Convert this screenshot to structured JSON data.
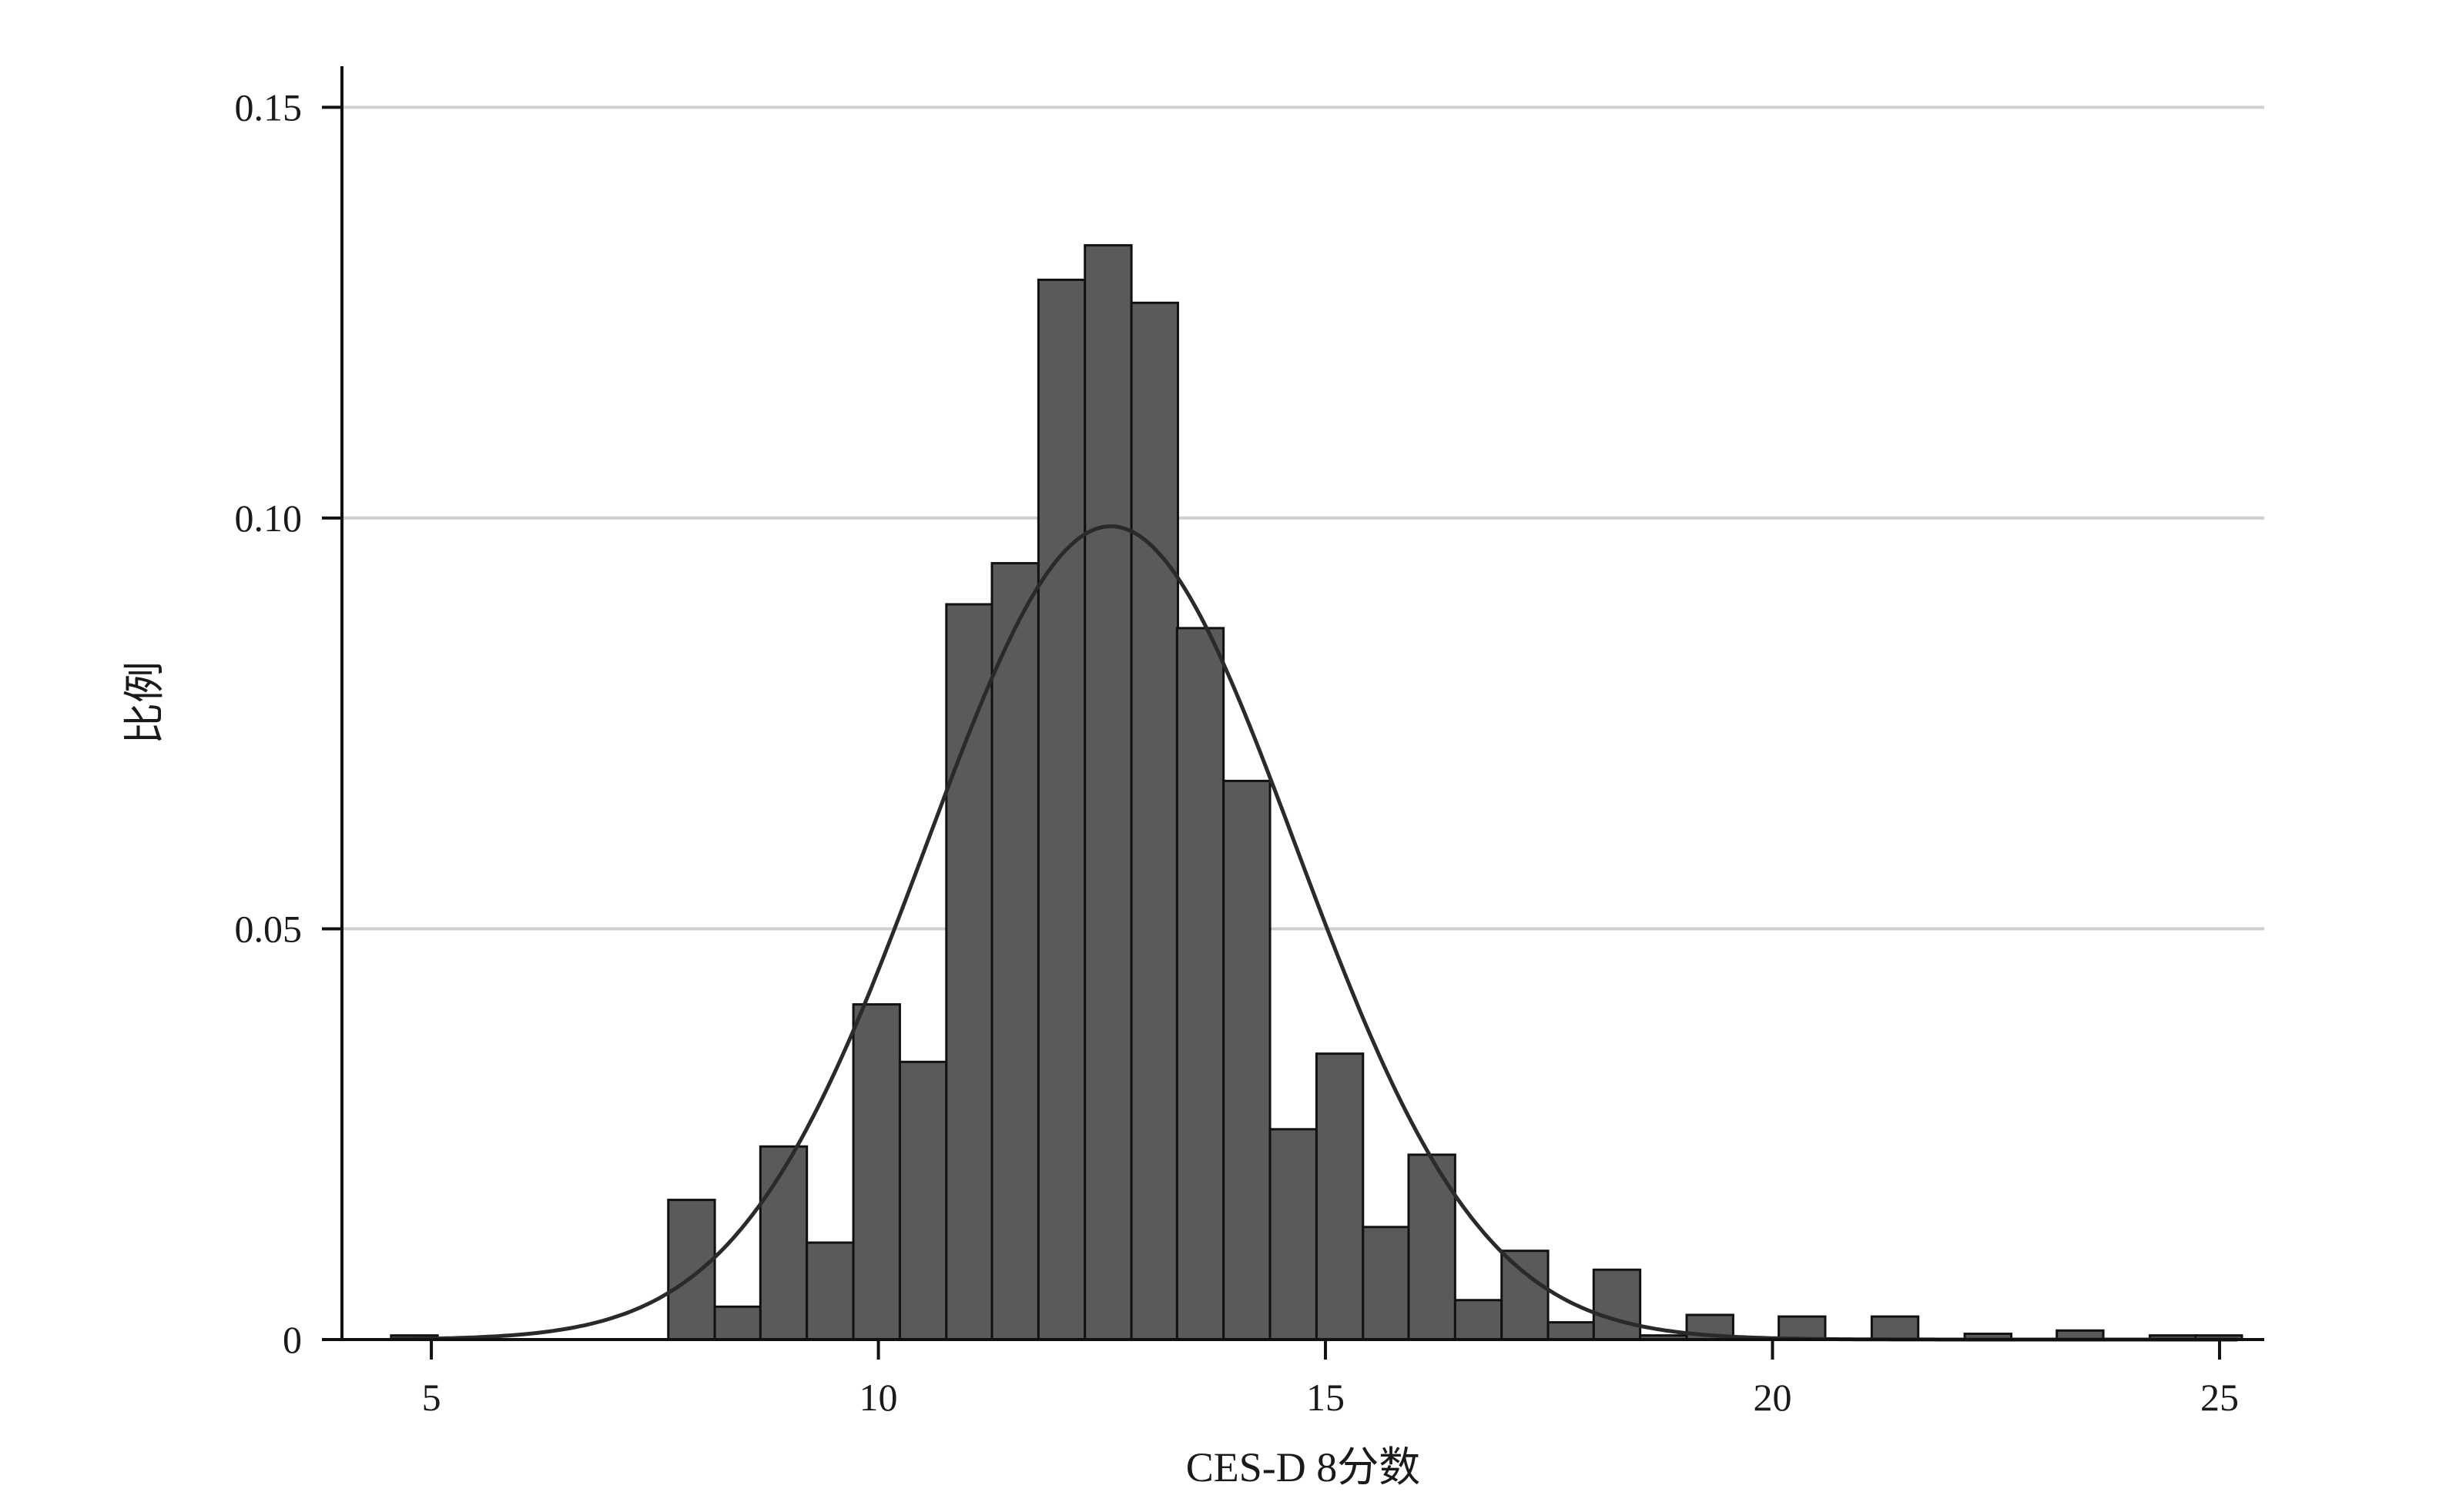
{
  "chart_data": {
    "type": "bar",
    "xlabel": "CES-D 8分数",
    "ylabel": "比例",
    "xlim": [
      4.0,
      25.5
    ],
    "ylim": [
      0,
      0.155
    ],
    "x_ticks": [
      5,
      10,
      15,
      20,
      25
    ],
    "x_tick_labels": [
      "5",
      "10",
      "15",
      "20",
      "25"
    ],
    "y_ticks": [
      0,
      0.05,
      0.1,
      0.15
    ],
    "y_tick_labels": [
      "0",
      "0.05",
      "0.10",
      "0.15"
    ],
    "grid": "horizontal",
    "bar_color": "#5a5a5a",
    "bin_width": 0.52,
    "bins": [
      {
        "start": 4.55,
        "value": 0.0005
      },
      {
        "start": 7.65,
        "value": 0.017
      },
      {
        "start": 8.17,
        "value": 0.004
      },
      {
        "start": 8.68,
        "value": 0.0235
      },
      {
        "start": 9.2,
        "value": 0.0118
      },
      {
        "start": 9.72,
        "value": 0.0408
      },
      {
        "start": 10.24,
        "value": 0.0338
      },
      {
        "start": 10.76,
        "value": 0.0895
      },
      {
        "start": 11.27,
        "value": 0.0945
      },
      {
        "start": 11.79,
        "value": 0.129
      },
      {
        "start": 12.31,
        "value": 0.1332
      },
      {
        "start": 12.83,
        "value": 0.1262
      },
      {
        "start": 13.34,
        "value": 0.0866
      },
      {
        "start": 13.86,
        "value": 0.068
      },
      {
        "start": 14.38,
        "value": 0.0256
      },
      {
        "start": 14.9,
        "value": 0.0348
      },
      {
        "start": 15.42,
        "value": 0.0137
      },
      {
        "start": 15.93,
        "value": 0.0225
      },
      {
        "start": 16.45,
        "value": 0.0048
      },
      {
        "start": 16.97,
        "value": 0.0108
      },
      {
        "start": 17.49,
        "value": 0.0021
      },
      {
        "start": 18.0,
        "value": 0.0085
      },
      {
        "start": 18.52,
        "value": 0.0005
      },
      {
        "start": 19.04,
        "value": 0.003
      },
      {
        "start": 20.07,
        "value": 0.0028
      },
      {
        "start": 21.11,
        "value": 0.0028
      },
      {
        "start": 22.15,
        "value": 0.0007
      },
      {
        "start": 23.18,
        "value": 0.0011
      },
      {
        "start": 24.22,
        "value": 0.0005
      },
      {
        "start": 24.73,
        "value": 0.0005
      }
    ],
    "normal_curve": {
      "mean": 12.6,
      "sd": 2.07,
      "peak": 0.099,
      "x_range": [
        4.55,
        25.2
      ]
    }
  }
}
